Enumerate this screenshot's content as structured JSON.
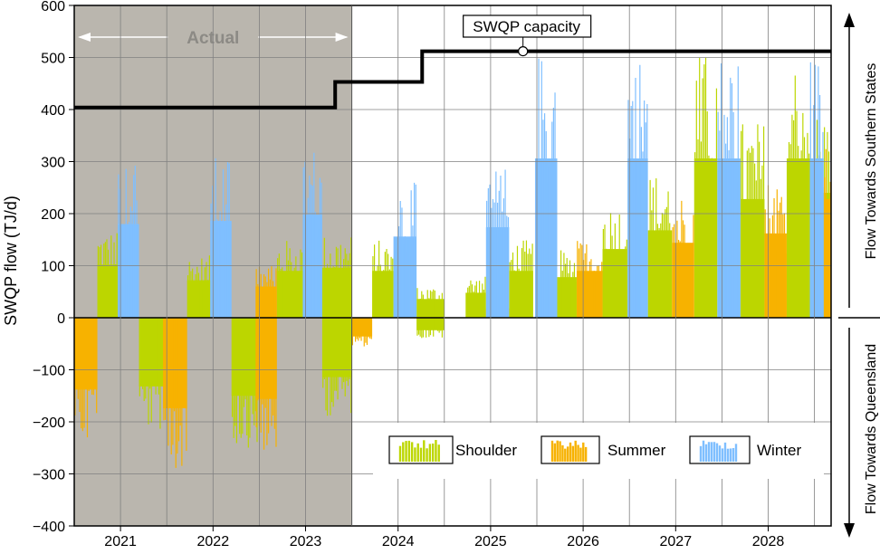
{
  "chart_data": {
    "type": "bar",
    "ylabel": "SWQP flow (TJ/d)",
    "ylim": [
      -400,
      600
    ],
    "yticks": [
      600,
      500,
      400,
      300,
      200,
      100,
      0,
      -100,
      -200,
      -300,
      -400
    ],
    "ytick_labels": [
      "600",
      "500",
      "400",
      "300",
      "200",
      "100",
      "0",
      "−100",
      "−200",
      "−300",
      "−400"
    ],
    "xlim": [
      2020.5,
      2028.68
    ],
    "x_labels": [
      "2021",
      "2022",
      "2023",
      "2024",
      "2025",
      "2026",
      "2027",
      "2028"
    ],
    "grid": true,
    "actual_region": {
      "label": "Actual",
      "x_start": 2020.5,
      "x_end": 2023.5,
      "color": "#bab6ae"
    },
    "capacity": {
      "label": "SWQP capacity",
      "marker_x": 2025.35,
      "steps": [
        {
          "x_start": 2020.5,
          "x_end": 2023.32,
          "value": 404
        },
        {
          "x_start": 2023.32,
          "x_end": 2024.26,
          "value": 453
        },
        {
          "x_start": 2024.26,
          "x_end": 2028.68,
          "value": 512
        }
      ]
    },
    "right_labels": {
      "upper": "Flow Towards Southern States",
      "lower": "Flow Towards Queensland"
    },
    "series": [
      {
        "name": "Shoulder",
        "color": "#bcd600",
        "values": [
          {
            "start": 2020.75,
            "end": 2020.97,
            "low": 0,
            "high": 170
          },
          {
            "start": 2021.2,
            "end": 2021.5,
            "low": -220,
            "high": 0
          },
          {
            "start": 2021.72,
            "end": 2021.97,
            "low": 0,
            "high": 120
          },
          {
            "start": 2022.2,
            "end": 2022.5,
            "low": -250,
            "high": 0
          },
          {
            "start": 2022.69,
            "end": 2022.97,
            "low": 0,
            "high": 150
          },
          {
            "start": 2023.18,
            "end": 2023.5,
            "low": -190,
            "high": 160
          },
          {
            "start": 2023.72,
            "end": 2023.95,
            "low": 0,
            "high": 150
          },
          {
            "start": 2024.2,
            "end": 2024.5,
            "low": -40,
            "high": 60
          },
          {
            "start": 2024.73,
            "end": 2024.95,
            "low": 0,
            "high": 80
          },
          {
            "start": 2025.2,
            "end": 2025.46,
            "low": 0,
            "high": 150
          },
          {
            "start": 2025.72,
            "end": 2025.93,
            "low": 0,
            "high": 130
          },
          {
            "start": 2026.21,
            "end": 2026.48,
            "low": 0,
            "high": 220
          },
          {
            "start": 2026.7,
            "end": 2026.96,
            "low": 0,
            "high": 280
          },
          {
            "start": 2027.2,
            "end": 2027.45,
            "low": 0,
            "high": 510
          },
          {
            "start": 2027.7,
            "end": 2027.96,
            "low": 0,
            "high": 380
          },
          {
            "start": 2028.2,
            "end": 2028.45,
            "low": 0,
            "high": 510
          },
          {
            "start": 2028.52,
            "end": 2028.68,
            "low": 0,
            "high": 400
          }
        ]
      },
      {
        "name": "Summer",
        "color": "#f7b200",
        "values": [
          {
            "start": 2020.5,
            "end": 2020.75,
            "low": -230,
            "high": 0
          },
          {
            "start": 2021.46,
            "end": 2021.72,
            "low": -290,
            "high": 0
          },
          {
            "start": 2022.46,
            "end": 2022.69,
            "low": -260,
            "high": 100
          },
          {
            "start": 2023.5,
            "end": 2023.72,
            "low": -60,
            "high": 0
          },
          {
            "start": 2024.95,
            "end": 2025.2,
            "low": 0,
            "high": 30
          },
          {
            "start": 2025.93,
            "end": 2026.21,
            "low": 0,
            "high": 150
          },
          {
            "start": 2026.96,
            "end": 2027.2,
            "low": 0,
            "high": 240
          },
          {
            "start": 2027.96,
            "end": 2028.2,
            "low": 0,
            "high": 270
          },
          {
            "start": 2028.6,
            "end": 2028.68,
            "low": 0,
            "high": 380
          }
        ]
      },
      {
        "name": "Winter",
        "color": "#7fbfff",
        "values": [
          {
            "start": 2020.97,
            "end": 2021.2,
            "low": 0,
            "high": 300
          },
          {
            "start": 2021.97,
            "end": 2022.2,
            "low": 0,
            "high": 310
          },
          {
            "start": 2022.97,
            "end": 2023.18,
            "low": 0,
            "high": 330
          },
          {
            "start": 2023.95,
            "end": 2024.2,
            "low": 0,
            "high": 260
          },
          {
            "start": 2024.95,
            "end": 2025.2,
            "low": 0,
            "high": 290
          },
          {
            "start": 2025.48,
            "end": 2025.72,
            "low": 0,
            "high": 510
          },
          {
            "start": 2026.48,
            "end": 2026.7,
            "low": 0,
            "high": 510
          },
          {
            "start": 2027.45,
            "end": 2027.7,
            "low": 0,
            "high": 510
          },
          {
            "start": 2028.45,
            "end": 2028.6,
            "low": 0,
            "high": 510
          }
        ]
      }
    ]
  }
}
